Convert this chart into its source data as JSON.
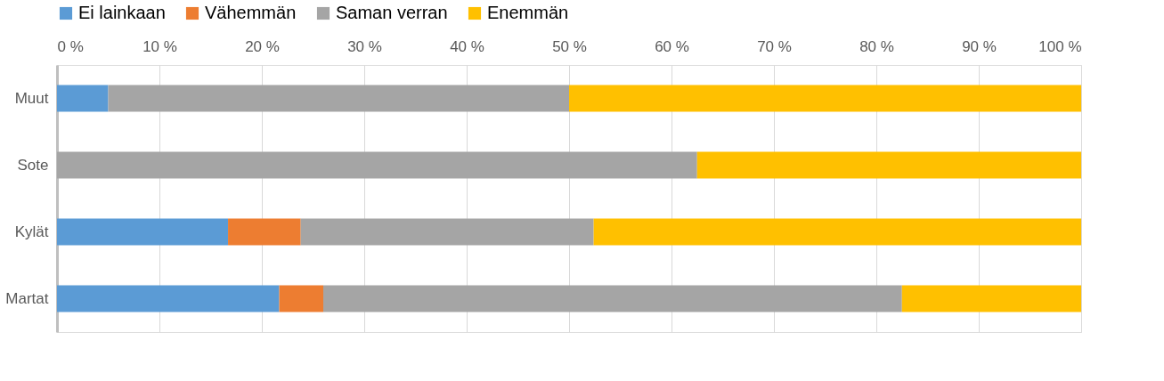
{
  "chart_data": {
    "type": "bar",
    "orientation": "horizontal",
    "stacked": true,
    "categories": [
      "Muut",
      "Sote",
      "Kylät",
      "Martat"
    ],
    "series": [
      {
        "name": "Ei lainkaan",
        "color": "#5b9bd5",
        "values": [
          5,
          0,
          16.7,
          21.7
        ]
      },
      {
        "name": "Vähemmän",
        "color": "#ed7d31",
        "values": [
          0,
          0,
          7.1,
          4.3
        ]
      },
      {
        "name": "Saman verran",
        "color": "#a5a5a5",
        "values": [
          45,
          62.5,
          28.6,
          56.5
        ]
      },
      {
        "name": "Enemmän",
        "color": "#ffc000",
        "values": [
          50,
          37.5,
          47.6,
          17.5
        ]
      }
    ],
    "xlim": [
      0,
      100
    ],
    "xticks": [
      {
        "value": 0,
        "label": "0 %"
      },
      {
        "value": 10,
        "label": "10 %"
      },
      {
        "value": 20,
        "label": "20 %"
      },
      {
        "value": 30,
        "label": "30 %"
      },
      {
        "value": 40,
        "label": "40 %"
      },
      {
        "value": 50,
        "label": "50 %"
      },
      {
        "value": 60,
        "label": "60 %"
      },
      {
        "value": 70,
        "label": "70 %"
      },
      {
        "value": 80,
        "label": "80 %"
      },
      {
        "value": 90,
        "label": "90 %"
      },
      {
        "value": 100,
        "label": "100 %"
      }
    ],
    "grid": "x",
    "legend": "top"
  }
}
